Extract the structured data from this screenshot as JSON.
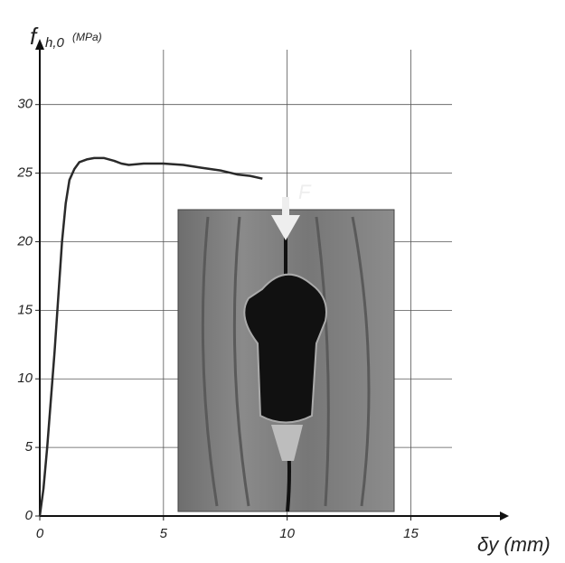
{
  "chart_data": {
    "type": "line",
    "ylabel": "f",
    "ylabel_sub": "h,0",
    "ylabel_unit": "(MPa)",
    "xlabel": "δy (mm)",
    "annotation": "F",
    "x": [
      0,
      0.15,
      0.3,
      0.45,
      0.6,
      0.75,
      0.9,
      1.05,
      1.2,
      1.4,
      1.6,
      1.9,
      2.2,
      2.6,
      3.0,
      3.3,
      3.6,
      4.2,
      5.0,
      5.8,
      6.5,
      7.3,
      8.0,
      8.5,
      9.0
    ],
    "values": [
      0,
      2,
      5,
      8.5,
      12,
      16,
      20,
      22.8,
      24.5,
      25.3,
      25.8,
      26.0,
      26.1,
      26.1,
      25.9,
      25.7,
      25.6,
      25.7,
      25.7,
      25.6,
      25.4,
      25.2,
      24.9,
      24.8,
      24.6
    ],
    "color": "#2a2a2a",
    "xlim": [
      0,
      18.6
    ],
    "xticks": [
      0,
      5,
      10,
      15
    ],
    "ylim": [
      0,
      34
    ],
    "yticks": [
      0,
      5,
      10,
      15,
      20,
      25,
      30
    ],
    "grid": true
  }
}
